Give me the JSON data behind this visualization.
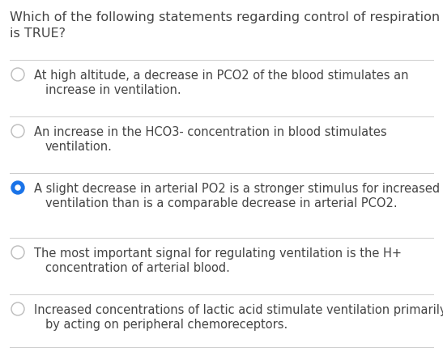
{
  "title_line1": "Which of the following statements regarding control of respiration",
  "title_line2": "is TRUE?",
  "title_fontsize": 11.5,
  "title_color": "#444444",
  "background_color": "#ffffff",
  "options": [
    {
      "line1": "At high altitude, a decrease in PCO2 of the blood stimulates an",
      "line2": "increase in ventilation.",
      "selected": false
    },
    {
      "line1": "An increase in the HCO3- concentration in blood stimulates",
      "line2": "ventilation.",
      "selected": false
    },
    {
      "line1": "A slight decrease in arterial PO2 is a stronger stimulus for increased",
      "line2": "ventilation than is a comparable decrease in arterial PCO2.",
      "selected": true
    },
    {
      "line1": "The most important signal for regulating ventilation is the H+",
      "line2": "concentration of arterial blood.",
      "selected": false
    },
    {
      "line1": "Increased concentrations of lactic acid stimulate ventilation primarily",
      "line2": "by acting on peripheral chemoreceptors.",
      "selected": false
    }
  ],
  "radio_color_selected": "#1a73e8",
  "radio_color_unselected_fill": "#ffffff",
  "radio_color_unselected_edge": "#bbbbbb",
  "separator_color": "#cccccc",
  "text_color": "#444444",
  "text_fontsize": 10.5,
  "figsize": [
    5.47,
    4.35
  ],
  "dpi": 100
}
